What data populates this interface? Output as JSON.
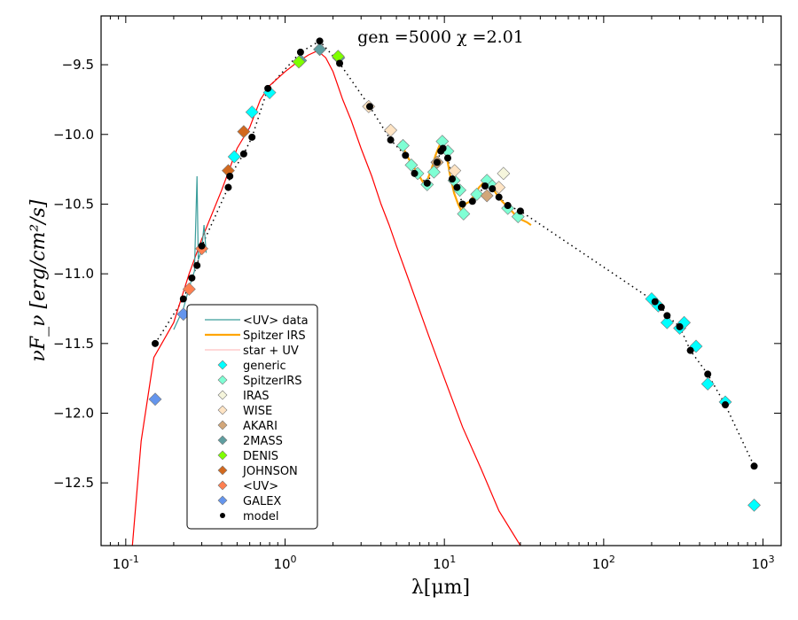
{
  "chart_data": {
    "type": "scatter",
    "title": "gen =5000  χ =2.01",
    "xlabel": "λ[μm]",
    "ylabel": "νF_ν [erg/cm²/s]",
    "xscale": "log",
    "xlim": [
      0.07,
      1300
    ],
    "ylim": [
      -12.95,
      -9.15
    ],
    "grid": false,
    "legend_position": "lower-left",
    "x_ticks": [
      {
        "value": 0.1,
        "base": "10",
        "exp": "-1"
      },
      {
        "value": 1,
        "base": "10",
        "exp": "0"
      },
      {
        "value": 10,
        "base": "10",
        "exp": "1"
      },
      {
        "value": 100,
        "base": "10",
        "exp": "2"
      },
      {
        "value": 1000,
        "base": "10",
        "exp": "3"
      }
    ],
    "y_ticks": [
      {
        "value": -9.5,
        "label": "−9.5"
      },
      {
        "value": -10.0,
        "label": "−10.0"
      },
      {
        "value": -10.5,
        "label": "−10.5"
      },
      {
        "value": -11.0,
        "label": "−11.0"
      },
      {
        "value": -11.5,
        "label": "−11.5"
      },
      {
        "value": -12.0,
        "label": "−12.0"
      },
      {
        "value": -12.5,
        "label": "−12.5"
      }
    ],
    "legend": [
      {
        "label": "<UV> data",
        "kind": "line",
        "color": "#3a9d9b"
      },
      {
        "label": "Spitzer IRS",
        "kind": "line",
        "color": "#ffa500"
      },
      {
        "label": "star + UV",
        "kind": "line",
        "color": "#ffc0c0"
      },
      {
        "label": "generic",
        "kind": "diamond",
        "color": "#00ffff"
      },
      {
        "label": "SpitzerIRS",
        "kind": "diamond",
        "color": "#7fffd4"
      },
      {
        "label": "IRAS",
        "kind": "diamond",
        "color": "#f5f5dc"
      },
      {
        "label": "WISE",
        "kind": "diamond",
        "color": "#ffe4c4"
      },
      {
        "label": "AKARI",
        "kind": "diamond",
        "color": "#d2a679"
      },
      {
        "label": "2MASS",
        "kind": "diamond",
        "color": "#5f9ea0"
      },
      {
        "label": "DENIS",
        "kind": "diamond",
        "color": "#7fff00"
      },
      {
        "label": "JOHNSON",
        "kind": "diamond",
        "color": "#d2691e"
      },
      {
        "label": "<UV>",
        "kind": "diamond",
        "color": "#ff7f50"
      },
      {
        "label": "GALEX",
        "kind": "diamond",
        "color": "#6495ed"
      },
      {
        "label": "model",
        "kind": "dot",
        "color": "#000000"
      }
    ],
    "series": [
      {
        "name": "star + UV",
        "kind": "line",
        "color": "#ff0000",
        "points": [
          [
            0.11,
            -12.95
          ],
          [
            0.125,
            -12.2
          ],
          [
            0.15,
            -11.6
          ],
          [
            0.2,
            -11.35
          ],
          [
            0.25,
            -11.0
          ],
          [
            0.3,
            -10.75
          ],
          [
            0.4,
            -10.4
          ],
          [
            0.5,
            -10.1
          ],
          [
            0.6,
            -9.95
          ],
          [
            0.7,
            -9.75
          ],
          [
            0.8,
            -9.65
          ],
          [
            1.0,
            -9.55
          ],
          [
            1.2,
            -9.48
          ],
          [
            1.4,
            -9.43
          ],
          [
            1.6,
            -9.4
          ],
          [
            1.8,
            -9.45
          ],
          [
            2.0,
            -9.55
          ],
          [
            2.3,
            -9.75
          ],
          [
            2.6,
            -9.9
          ],
          [
            3.0,
            -10.1
          ],
          [
            3.5,
            -10.3
          ],
          [
            4.0,
            -10.5
          ],
          [
            4.5,
            -10.65
          ],
          [
            5.0,
            -10.8
          ],
          [
            6.0,
            -11.05
          ],
          [
            8.0,
            -11.45
          ],
          [
            10.0,
            -11.75
          ],
          [
            13.0,
            -12.1
          ],
          [
            17.0,
            -12.4
          ],
          [
            22.0,
            -12.7
          ],
          [
            30.0,
            -12.95
          ]
        ]
      },
      {
        "name": "Spitzer IRS",
        "kind": "line",
        "color": "#ffa500",
        "points": [
          [
            5.3,
            -10.05
          ],
          [
            5.8,
            -10.15
          ],
          [
            6.3,
            -10.22
          ],
          [
            6.8,
            -10.28
          ],
          [
            7.4,
            -10.35
          ],
          [
            7.8,
            -10.33
          ],
          [
            8.3,
            -10.25
          ],
          [
            8.8,
            -10.15
          ],
          [
            9.3,
            -10.08
          ],
          [
            9.7,
            -10.07
          ],
          [
            10.2,
            -10.12
          ],
          [
            10.8,
            -10.28
          ],
          [
            11.5,
            -10.42
          ],
          [
            12.2,
            -10.5
          ],
          [
            12.8,
            -10.55
          ],
          [
            13.5,
            -10.5
          ],
          [
            14.5,
            -10.48
          ],
          [
            15.5,
            -10.43
          ],
          [
            16.5,
            -10.38
          ],
          [
            17.5,
            -10.35
          ],
          [
            18.5,
            -10.34
          ],
          [
            19.5,
            -10.36
          ],
          [
            21.0,
            -10.42
          ],
          [
            23.0,
            -10.48
          ],
          [
            26.0,
            -10.54
          ],
          [
            29.0,
            -10.6
          ],
          [
            33.0,
            -10.63
          ],
          [
            35.0,
            -10.65
          ]
        ]
      },
      {
        "name": "<UV> data",
        "kind": "line",
        "color": "#3a9d9b",
        "points": [
          [
            0.2,
            -11.4
          ],
          [
            0.23,
            -11.25
          ],
          [
            0.25,
            -11.1
          ],
          [
            0.27,
            -10.98
          ],
          [
            0.28,
            -10.3
          ],
          [
            0.285,
            -10.9
          ],
          [
            0.3,
            -10.82
          ],
          [
            0.31,
            -10.65
          ],
          [
            0.32,
            -10.85
          ]
        ]
      },
      {
        "name": "model",
        "kind": "dot",
        "color": "#000000",
        "points": [
          [
            0.153,
            -11.5
          ],
          [
            0.23,
            -11.18
          ],
          [
            0.26,
            -11.03
          ],
          [
            0.28,
            -10.94
          ],
          [
            0.3,
            -10.8
          ],
          [
            0.44,
            -10.38
          ],
          [
            0.45,
            -10.3
          ],
          [
            0.55,
            -10.14
          ],
          [
            0.62,
            -10.02
          ],
          [
            0.78,
            -9.67
          ],
          [
            1.25,
            -9.41
          ],
          [
            1.65,
            -9.33
          ],
          [
            2.2,
            -9.49
          ],
          [
            3.4,
            -9.8
          ],
          [
            4.6,
            -10.04
          ],
          [
            5.7,
            -10.15
          ],
          [
            6.5,
            -10.28
          ],
          [
            7.8,
            -10.35
          ],
          [
            9.0,
            -10.2
          ],
          [
            9.5,
            -10.12
          ],
          [
            9.8,
            -10.1
          ],
          [
            10.5,
            -10.17
          ],
          [
            11.2,
            -10.32
          ],
          [
            12.0,
            -10.38
          ],
          [
            13.0,
            -10.5
          ],
          [
            15.0,
            -10.48
          ],
          [
            18.0,
            -10.37
          ],
          [
            20.0,
            -10.39
          ],
          [
            22.0,
            -10.45
          ],
          [
            25.0,
            -10.51
          ],
          [
            30.0,
            -10.55
          ],
          [
            210.0,
            -11.2
          ],
          [
            230.0,
            -11.24
          ],
          [
            250.0,
            -11.3
          ],
          [
            300.0,
            -11.38
          ],
          [
            350.0,
            -11.55
          ],
          [
            450.0,
            -11.72
          ],
          [
            580.0,
            -11.94
          ],
          [
            880.0,
            -12.38
          ]
        ]
      },
      {
        "name": "generic",
        "kind": "diamond",
        "color": "#00ffff",
        "points": [
          [
            0.48,
            -10.16
          ],
          [
            0.62,
            -9.84
          ],
          [
            0.8,
            -9.7
          ],
          [
            200.0,
            -11.18
          ],
          [
            220.0,
            -11.23
          ],
          [
            250.0,
            -11.35
          ],
          [
            300.0,
            -11.39
          ],
          [
            320.0,
            -11.35
          ],
          [
            380.0,
            -11.52
          ],
          [
            450.0,
            -11.79
          ],
          [
            580.0,
            -11.92
          ],
          [
            880.0,
            -12.66
          ]
        ]
      },
      {
        "name": "SpitzerIRS",
        "kind": "diamond",
        "color": "#7fffd4",
        "points": [
          [
            5.5,
            -10.08
          ],
          [
            6.2,
            -10.22
          ],
          [
            6.8,
            -10.28
          ],
          [
            7.8,
            -10.36
          ],
          [
            8.6,
            -10.27
          ],
          [
            9.0,
            -10.2
          ],
          [
            9.7,
            -10.05
          ],
          [
            10.5,
            -10.12
          ],
          [
            11.5,
            -10.33
          ],
          [
            12.5,
            -10.4
          ],
          [
            13.2,
            -10.57
          ],
          [
            16.0,
            -10.43
          ],
          [
            18.5,
            -10.33
          ],
          [
            20.0,
            -10.37
          ],
          [
            25.0,
            -10.53
          ],
          [
            29.0,
            -10.59
          ]
        ]
      },
      {
        "name": "IRAS",
        "kind": "diamond",
        "color": "#f5f5dc",
        "points": [
          [
            23.5,
            -10.28
          ]
        ]
      },
      {
        "name": "WISE",
        "kind": "diamond",
        "color": "#ffe4c4",
        "points": [
          [
            3.35,
            -9.8
          ],
          [
            4.6,
            -9.97
          ],
          [
            11.6,
            -10.26
          ],
          [
            22.0,
            -10.38
          ]
        ]
      },
      {
        "name": "AKARI",
        "kind": "diamond",
        "color": "#d2a679",
        "points": [
          [
            9.0,
            -10.2
          ],
          [
            18.5,
            -10.44
          ]
        ]
      },
      {
        "name": "2MASS",
        "kind": "diamond",
        "color": "#5f9ea0",
        "points": [
          [
            1.25,
            -9.47
          ],
          [
            1.65,
            -9.39
          ],
          [
            2.17,
            -9.45
          ]
        ]
      },
      {
        "name": "DENIS",
        "kind": "diamond",
        "color": "#7fff00",
        "points": [
          [
            1.22,
            -9.48
          ],
          [
            2.15,
            -9.44
          ]
        ]
      },
      {
        "name": "JOHNSON",
        "kind": "diamond",
        "color": "#d2691e",
        "points": [
          [
            0.44,
            -10.26
          ],
          [
            0.55,
            -9.98
          ]
        ]
      },
      {
        "name": "<UV>",
        "kind": "diamond",
        "color": "#ff7f50",
        "points": [
          [
            0.25,
            -11.11
          ],
          [
            0.3,
            -10.82
          ]
        ]
      },
      {
        "name": "GALEX",
        "kind": "diamond",
        "color": "#6495ed",
        "points": [
          [
            0.153,
            -11.9
          ],
          [
            0.23,
            -11.29
          ]
        ]
      }
    ]
  }
}
